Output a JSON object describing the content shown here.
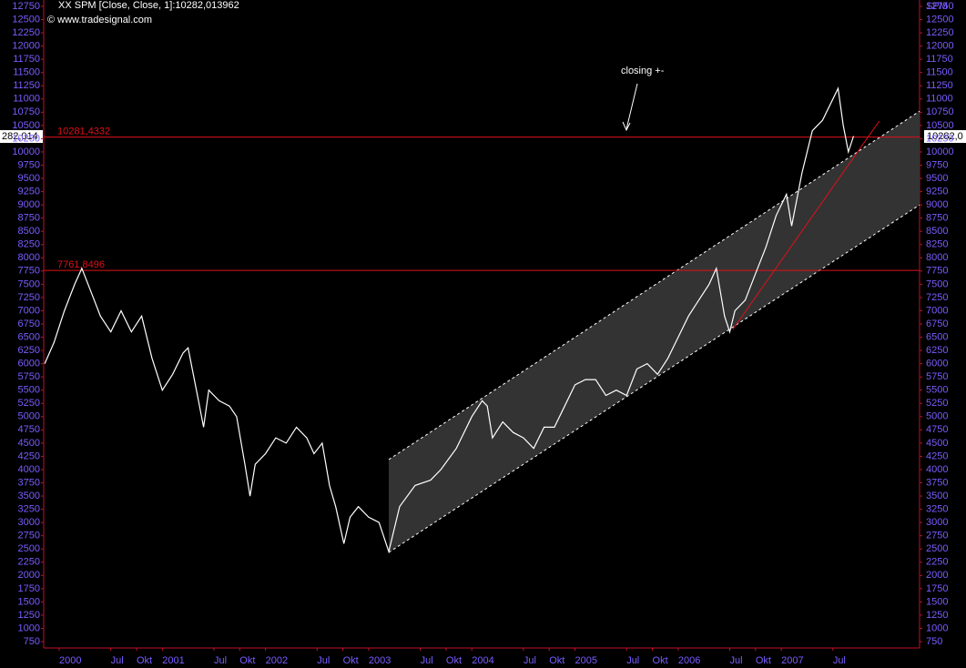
{
  "chart_data": {
    "type": "line",
    "title": "XX SPM [Close, Close, 1]:10282,013962",
    "subtitle": "© www.tradesignal.com",
    "y2_label": "SPM",
    "annotation": "closing +-",
    "last_value_labels": [
      "282,014",
      "10282,0"
    ],
    "xlim": [
      1999.85,
      2008.34
    ],
    "ylim": [
      630,
      12870
    ],
    "xticks": [
      {
        "value": 2000,
        "label": "2000"
      },
      {
        "value": 2000.5,
        "label": "Jul"
      },
      {
        "value": 2000.75,
        "label": "Okt"
      },
      {
        "value": 2001,
        "label": "2001"
      },
      {
        "value": 2001.5,
        "label": "Jul"
      },
      {
        "value": 2001.75,
        "label": "Okt"
      },
      {
        "value": 2002,
        "label": "2002"
      },
      {
        "value": 2002.5,
        "label": "Jul"
      },
      {
        "value": 2002.75,
        "label": "Okt"
      },
      {
        "value": 2003,
        "label": "2003"
      },
      {
        "value": 2003.5,
        "label": "Jul"
      },
      {
        "value": 2003.75,
        "label": "Okt"
      },
      {
        "value": 2004,
        "label": "2004"
      },
      {
        "value": 2004.5,
        "label": "Jul"
      },
      {
        "value": 2004.75,
        "label": "Okt"
      },
      {
        "value": 2005,
        "label": "2005"
      },
      {
        "value": 2005.5,
        "label": "Jul"
      },
      {
        "value": 2005.75,
        "label": "Okt"
      },
      {
        "value": 2006,
        "label": "2006"
      },
      {
        "value": 2006.5,
        "label": "Jul"
      },
      {
        "value": 2006.75,
        "label": "Okt"
      },
      {
        "value": 2007,
        "label": "2007"
      },
      {
        "value": 2007.5,
        "label": "Jul"
      }
    ],
    "yticks": [
      750,
      1000,
      1250,
      1500,
      1750,
      2000,
      2250,
      2500,
      2750,
      3000,
      3250,
      3500,
      3750,
      4000,
      4250,
      4500,
      4750,
      5000,
      5250,
      5500,
      5750,
      6000,
      6250,
      6500,
      6750,
      7000,
      7250,
      7500,
      7750,
      8000,
      8250,
      8500,
      8750,
      9000,
      9250,
      9500,
      9750,
      10000,
      10250,
      10500,
      10750,
      11000,
      11250,
      11500,
      11750,
      12000,
      12250,
      12500,
      12750
    ],
    "hlines": [
      {
        "value": 10281.4332,
        "label": "10281,4332",
        "color": "#e0101a"
      },
      {
        "value": 7761.8496,
        "label": "7761,8496",
        "color": "#e0101a"
      }
    ],
    "channel": {
      "x": [
        2003.195,
        2008.34
      ],
      "upper": [
        4190,
        10770
      ],
      "lower": [
        2435,
        9000
      ],
      "fill": "#333333",
      "edge": "#ffffff"
    },
    "trendline": {
      "x": [
        2006.53,
        2007.95
      ],
      "values": [
        6647,
        10584
      ],
      "color": "#e0101a"
    },
    "series": [
      {
        "name": "SPM",
        "color": "#ffffff",
        "x": [
          1999.86,
          1999.95,
          2000.05,
          2000.15,
          2000.22,
          2000.3,
          2000.4,
          2000.5,
          2000.6,
          2000.7,
          2000.8,
          2000.9,
          2001.0,
          2001.1,
          2001.2,
          2001.25,
          2001.35,
          2001.4,
          2001.45,
          2001.55,
          2001.65,
          2001.72,
          2001.8,
          2001.85,
          2001.9,
          2002.0,
          2002.1,
          2002.2,
          2002.3,
          2002.4,
          2002.47,
          2002.55,
          2002.62,
          2002.68,
          2002.76,
          2002.82,
          2002.9,
          2003.0,
          2003.1,
          2003.195,
          2003.3,
          2003.45,
          2003.6,
          2003.7,
          2003.85,
          2004.0,
          2004.1,
          2004.15,
          2004.2,
          2004.3,
          2004.4,
          2004.5,
          2004.6,
          2004.7,
          2004.8,
          2004.9,
          2005.0,
          2005.1,
          2005.2,
          2005.3,
          2005.4,
          2005.5,
          2005.6,
          2005.7,
          2005.8,
          2005.9,
          2006.0,
          2006.1,
          2006.2,
          2006.3,
          2006.37,
          2006.45,
          2006.5,
          2006.55,
          2006.65,
          2006.75,
          2006.85,
          2006.95,
          2007.05,
          2007.1,
          2007.2,
          2007.3,
          2007.4,
          2007.5,
          2007.55,
          2007.6,
          2007.65,
          2007.7
        ],
        "values": [
          6000,
          6400,
          7000,
          7500,
          7800,
          7400,
          6900,
          6600,
          7000,
          6600,
          6900,
          6100,
          5500,
          5800,
          6200,
          6300,
          5300,
          4800,
          5500,
          5300,
          5200,
          5000,
          4100,
          3500,
          4100,
          4300,
          4600,
          4500,
          4800,
          4600,
          4300,
          4500,
          3700,
          3300,
          2600,
          3100,
          3300,
          3100,
          3000,
          2450,
          3300,
          3700,
          3800,
          4000,
          4400,
          5000,
          5300,
          5200,
          4600,
          4900,
          4700,
          4600,
          4400,
          4800,
          4800,
          5200,
          5600,
          5700,
          5700,
          5400,
          5500,
          5400,
          5900,
          6000,
          5800,
          6100,
          6500,
          6900,
          7200,
          7500,
          7800,
          6900,
          6600,
          7000,
          7200,
          7700,
          8200,
          8800,
          9200,
          8600,
          9600,
          10400,
          10600,
          11000,
          11200,
          10500,
          10000,
          10300
        ]
      }
    ]
  }
}
